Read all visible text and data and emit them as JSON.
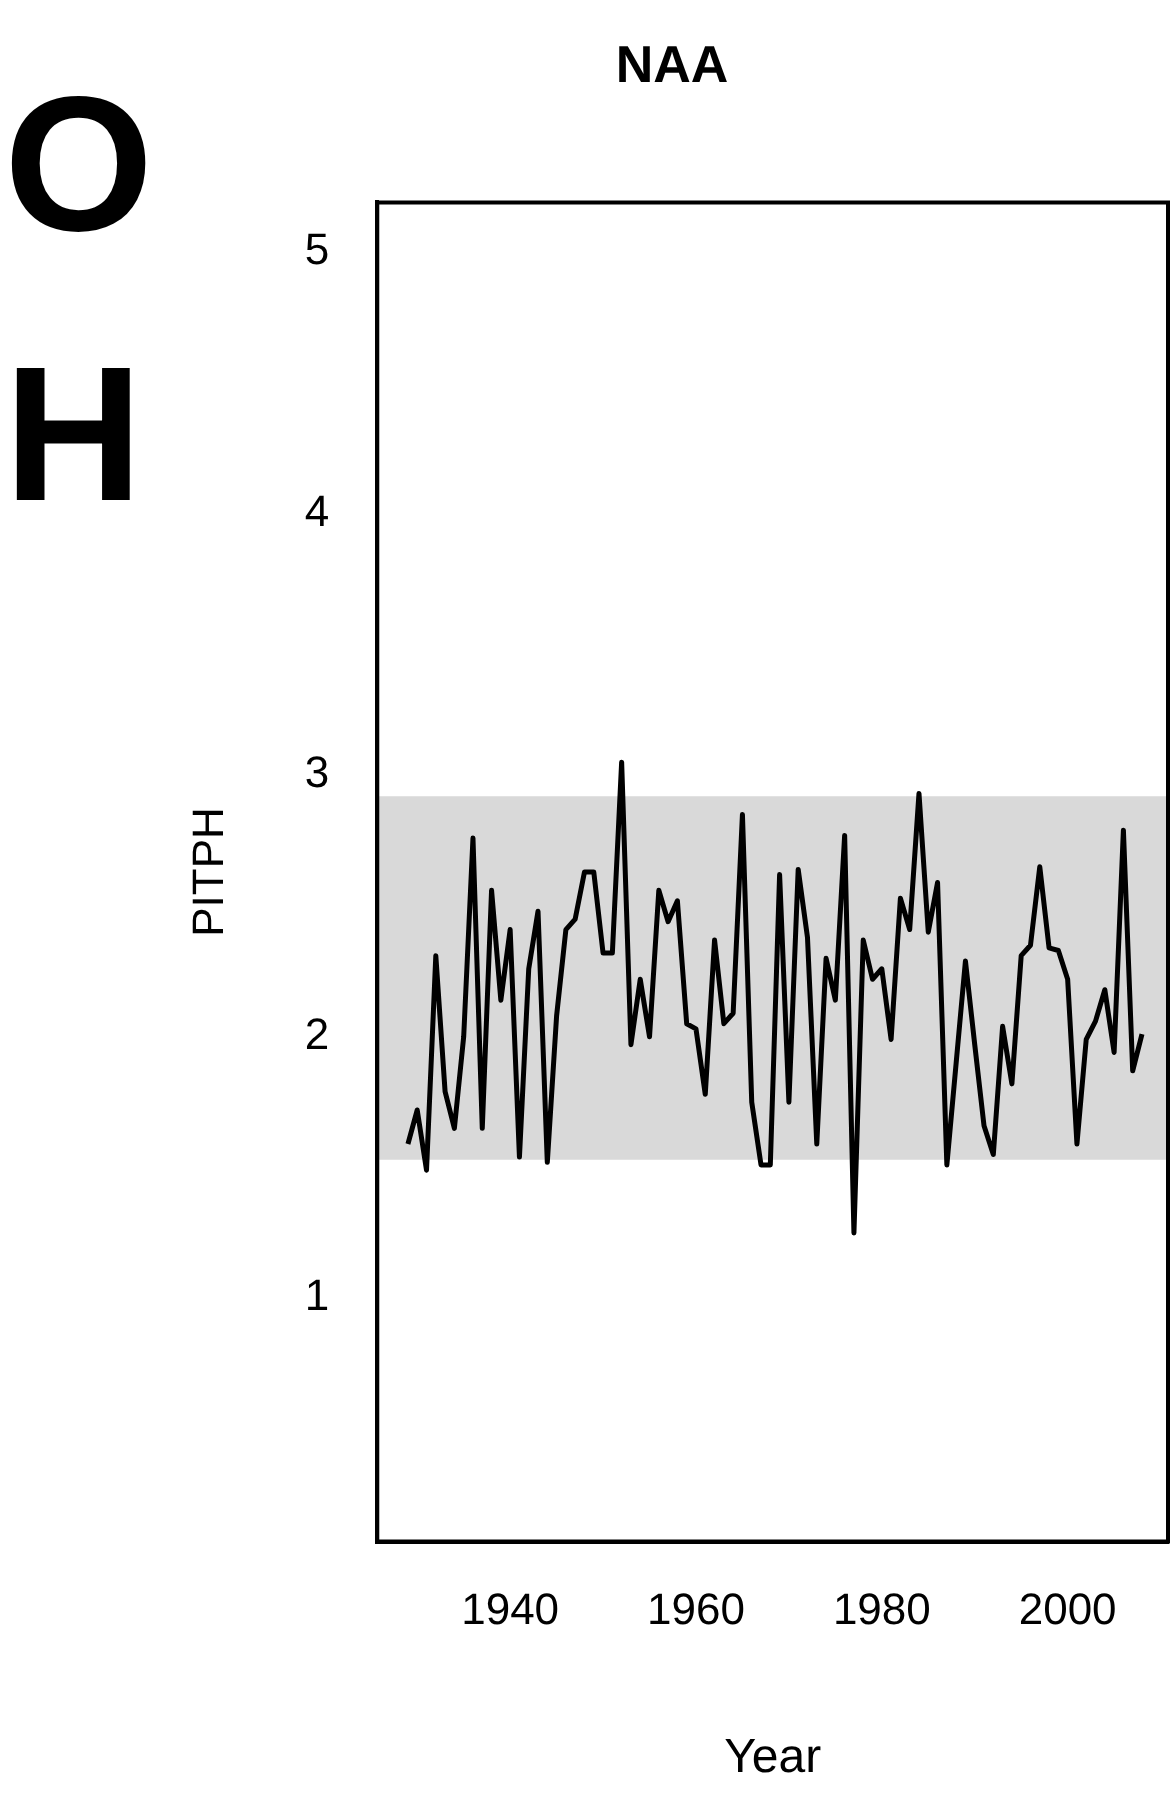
{
  "chart_data": {
    "type": "line",
    "title": "NAA",
    "xlabel": "Year",
    "ylabel": "PITPH",
    "annotations": [
      "O",
      "H"
    ],
    "x": [
      1929,
      1930,
      1931,
      1932,
      1933,
      1934,
      1935,
      1936,
      1937,
      1938,
      1939,
      1940,
      1941,
      1942,
      1943,
      1944,
      1945,
      1946,
      1947,
      1948,
      1949,
      1950,
      1951,
      1952,
      1953,
      1954,
      1955,
      1956,
      1957,
      1958,
      1959,
      1960,
      1961,
      1962,
      1963,
      1964,
      1965,
      1966,
      1967,
      1968,
      1969,
      1970,
      1971,
      1972,
      1973,
      1974,
      1975,
      1976,
      1977,
      1978,
      1979,
      1980,
      1981,
      1982,
      1983,
      1984,
      1985,
      1986,
      1987,
      1988,
      1989,
      1990,
      1991,
      1992,
      1993,
      1994,
      1995,
      1996,
      1997,
      1998,
      1999,
      2000,
      2001,
      2002,
      2003,
      2004,
      2005,
      2006,
      2007,
      2008
    ],
    "values": [
      1.59,
      1.72,
      1.49,
      2.31,
      1.79,
      1.65,
      2.0,
      2.76,
      1.65,
      2.56,
      2.14,
      2.41,
      1.54,
      2.26,
      2.48,
      1.52,
      2.08,
      2.41,
      2.45,
      2.63,
      2.63,
      2.32,
      2.32,
      3.05,
      1.97,
      2.22,
      2.0,
      2.56,
      2.44,
      2.52,
      2.05,
      2.03,
      1.78,
      2.37,
      2.05,
      2.09,
      2.85,
      1.75,
      1.51,
      1.51,
      2.62,
      1.75,
      2.64,
      2.38,
      1.59,
      2.3,
      2.14,
      2.77,
      1.25,
      2.37,
      2.22,
      2.26,
      1.99,
      2.53,
      2.41,
      2.93,
      2.4,
      2.59,
      1.51,
      1.9,
      2.29,
      1.97,
      1.66,
      1.55,
      2.04,
      1.82,
      2.31,
      2.35,
      2.65,
      2.34,
      2.33,
      2.22,
      1.59,
      1.99,
      2.06,
      2.18,
      1.94,
      2.79,
      1.87,
      2.01
    ],
    "color": "#000000",
    "marker": "none",
    "line_style": "solid",
    "xlim": [
      1925.7,
      2010.8
    ],
    "xticks": [
      1940,
      1960,
      1980,
      2000
    ],
    "ylim": [
      0.07,
      5.19
    ],
    "yticks": [
      1,
      2,
      3,
      4,
      5
    ],
    "bands": [
      {
        "axis": "y",
        "from": 1.53,
        "to": 2.92,
        "color": "#d9d9d9"
      }
    ]
  }
}
